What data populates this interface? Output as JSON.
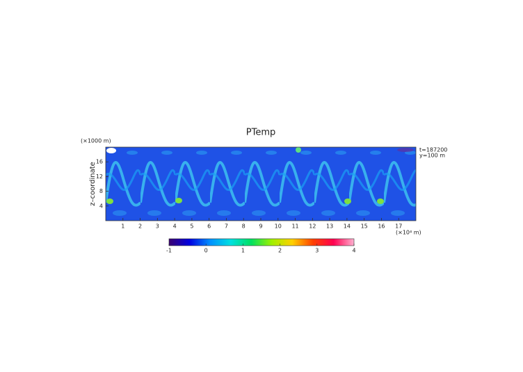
{
  "chart_data": {
    "type": "heatmap",
    "title": "PTemp",
    "y_unit_label": "(×1000 m)",
    "ylabel": "z–coordinate",
    "x_unit_label": "(×10⁴ m)",
    "annotations": [
      "t=187200",
      "y=100 m"
    ],
    "xlim": [
      0,
      18
    ],
    "xticks": [
      1,
      2,
      3,
      4,
      5,
      6,
      7,
      8,
      9,
      10,
      11,
      12,
      13,
      14,
      15,
      16,
      17
    ],
    "ylim": [
      0,
      20
    ],
    "yticks": [
      4,
      8,
      12,
      16
    ],
    "colorbar": {
      "clim": [
        -1,
        4
      ],
      "ticks": [
        -1,
        0,
        1,
        2,
        3,
        4
      ],
      "colors": [
        "#3a0070",
        "#0000e0",
        "#0090ff",
        "#00e0e0",
        "#00e060",
        "#a0f000",
        "#ffd000",
        "#ff4000",
        "#ff0050",
        "#ffb0d0"
      ]
    }
  }
}
